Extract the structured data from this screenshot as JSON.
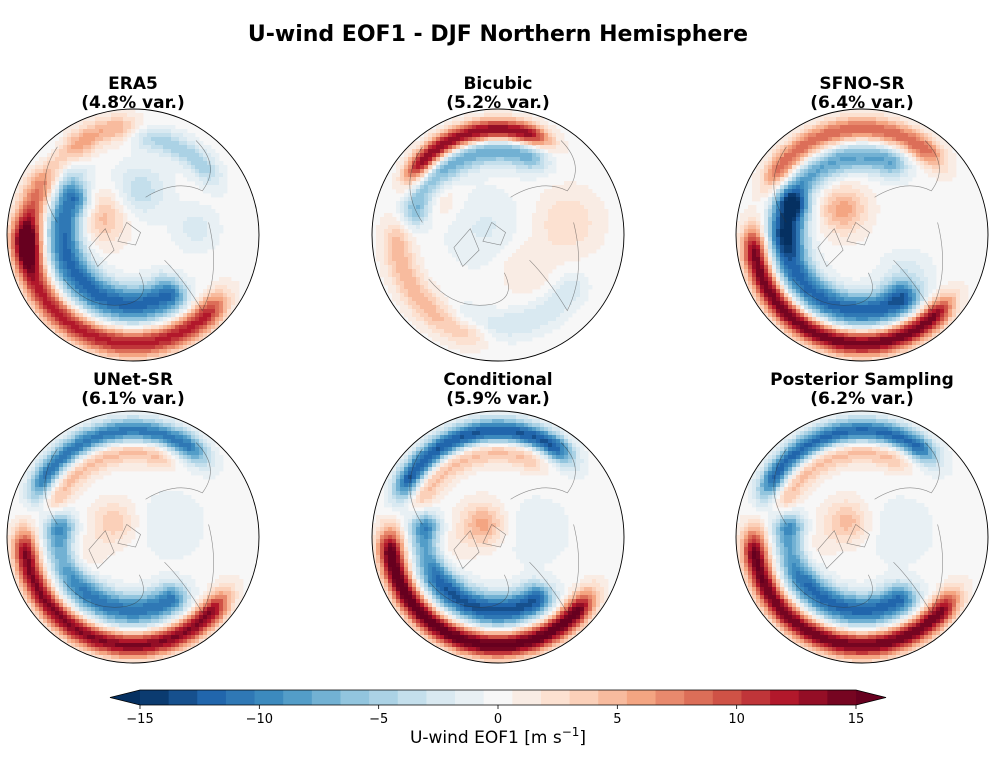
{
  "chart_data": {
    "type": "heatmap",
    "title": "U-wind EOF1 - DJF Northern Hemisphere",
    "projection": "north-polar orthographic",
    "panels": [
      {
        "name": "ERA5",
        "variance": "(4.8% var.)",
        "pattern": "era5"
      },
      {
        "name": "Bicubic",
        "variance": "(5.2% var.)",
        "pattern": "bicubic"
      },
      {
        "name": "SFNO-SR",
        "variance": "(6.4% var.)",
        "pattern": "sfno"
      },
      {
        "name": "UNet-SR",
        "variance": "(6.1% var.)",
        "pattern": "unet"
      },
      {
        "name": "Conditional",
        "variance": "(5.9% var.)",
        "pattern": "conditional"
      },
      {
        "name": "Posterior Sampling",
        "variance": "(6.2% var.)",
        "pattern": "posterior"
      }
    ],
    "colorbar": {
      "label": "U-wind EOF1 [m s",
      "label_sup": "−1",
      "label_end": "]",
      "vmin": -15,
      "vmax": 15,
      "n_levels": 26,
      "extend": "both",
      "ticks": [
        -15,
        -10,
        -5,
        0,
        5,
        10,
        15
      ],
      "tick_labels": [
        "−15",
        "−10",
        "−5",
        "0",
        "5",
        "10",
        "15"
      ],
      "colormap": "RdBu_r"
    }
  }
}
